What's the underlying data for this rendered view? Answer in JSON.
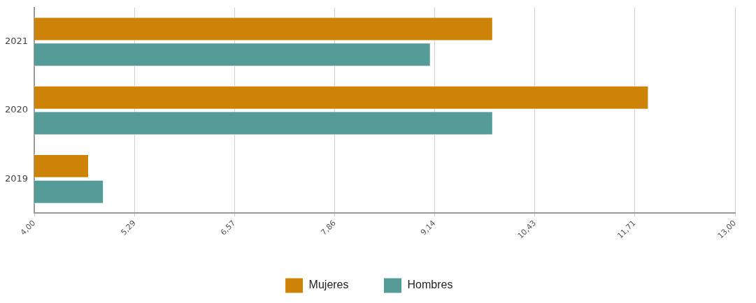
{
  "chart_data": {
    "type": "bar",
    "orientation": "horizontal",
    "categories": [
      "2021",
      "2020",
      "2019"
    ],
    "series": [
      {
        "name": "Mujeres",
        "color": "#cc8307",
        "values": [
          9.89,
          11.89,
          4.7
        ]
      },
      {
        "name": "Hombres",
        "color": "#559c98",
        "values": [
          9.09,
          9.89,
          4.89
        ]
      }
    ],
    "xlim": [
      4,
      13
    ],
    "xticks": [
      {
        "value": 4,
        "label": "4,00"
      },
      {
        "value": 5.29,
        "label": "5,29"
      },
      {
        "value": 6.57,
        "label": "6,57"
      },
      {
        "value": 7.86,
        "label": "7,86"
      },
      {
        "value": 9.14,
        "label": "9,14"
      },
      {
        "value": 10.43,
        "label": "10,43"
      },
      {
        "value": 11.71,
        "label": "11,71"
      },
      {
        "value": 13,
        "label": "13,00"
      }
    ],
    "grid": "x",
    "legend": "bottom"
  }
}
